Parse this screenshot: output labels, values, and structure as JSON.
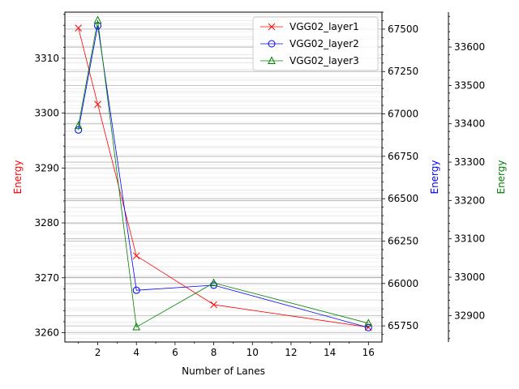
{
  "chart_data": {
    "type": "line",
    "xlabel": "Number of Lanes",
    "x": [
      1,
      2,
      4,
      8,
      16
    ],
    "x_ticks": [
      2,
      4,
      6,
      8,
      10,
      12,
      14,
      16
    ],
    "xlim": [
      0.3,
      16.7
    ],
    "grid": true,
    "legend_position": "top-right",
    "axes": [
      {
        "side": "left",
        "ylabel": "Energy",
        "color": "#ff0000",
        "ylim": [
          3258.3,
          3318.4
        ],
        "ticks": [
          3260,
          3270,
          3280,
          3290,
          3300,
          3310
        ],
        "tick_labels": [
          "3260",
          "3270",
          "3280",
          "3290",
          "3300",
          "3310"
        ]
      },
      {
        "side": "right",
        "ylabel": "Energy",
        "color": "#0000ff",
        "ylim": [
          65655,
          67600
        ],
        "ticks": [
          65750,
          66000,
          66250,
          66500,
          66750,
          67000,
          67250,
          67500
        ],
        "tick_labels": [
          "65750",
          "66000",
          "66250",
          "66500",
          "66750",
          "67000",
          "67250",
          "67500"
        ]
      },
      {
        "side": "right-outer",
        "ylabel": "Energy",
        "color": "#008000",
        "ylim": [
          32831,
          33691
        ],
        "ticks": [
          32900,
          33000,
          33100,
          33200,
          33300,
          33400,
          33500,
          33600
        ],
        "tick_labels": [
          "32900",
          "33000",
          "33100",
          "33200",
          "33300",
          "33400",
          "33500",
          "33600"
        ]
      }
    ],
    "series": [
      {
        "name": "VGG02_layer1",
        "axis": 0,
        "color": "#ff0000",
        "marker": "x",
        "values": [
          3315.5,
          3301.6,
          3274.0,
          3265.1,
          3261.0
        ]
      },
      {
        "name": "VGG02_layer2",
        "axis": 1,
        "color": "#0000ff",
        "marker": "circle",
        "values": [
          66905,
          67520,
          65960,
          65990,
          65740
        ]
      },
      {
        "name": "VGG02_layer3",
        "axis": 2,
        "color": "#008000",
        "marker": "triangle",
        "values": [
          33395,
          33670,
          32870,
          32985,
          32880
        ]
      }
    ]
  }
}
